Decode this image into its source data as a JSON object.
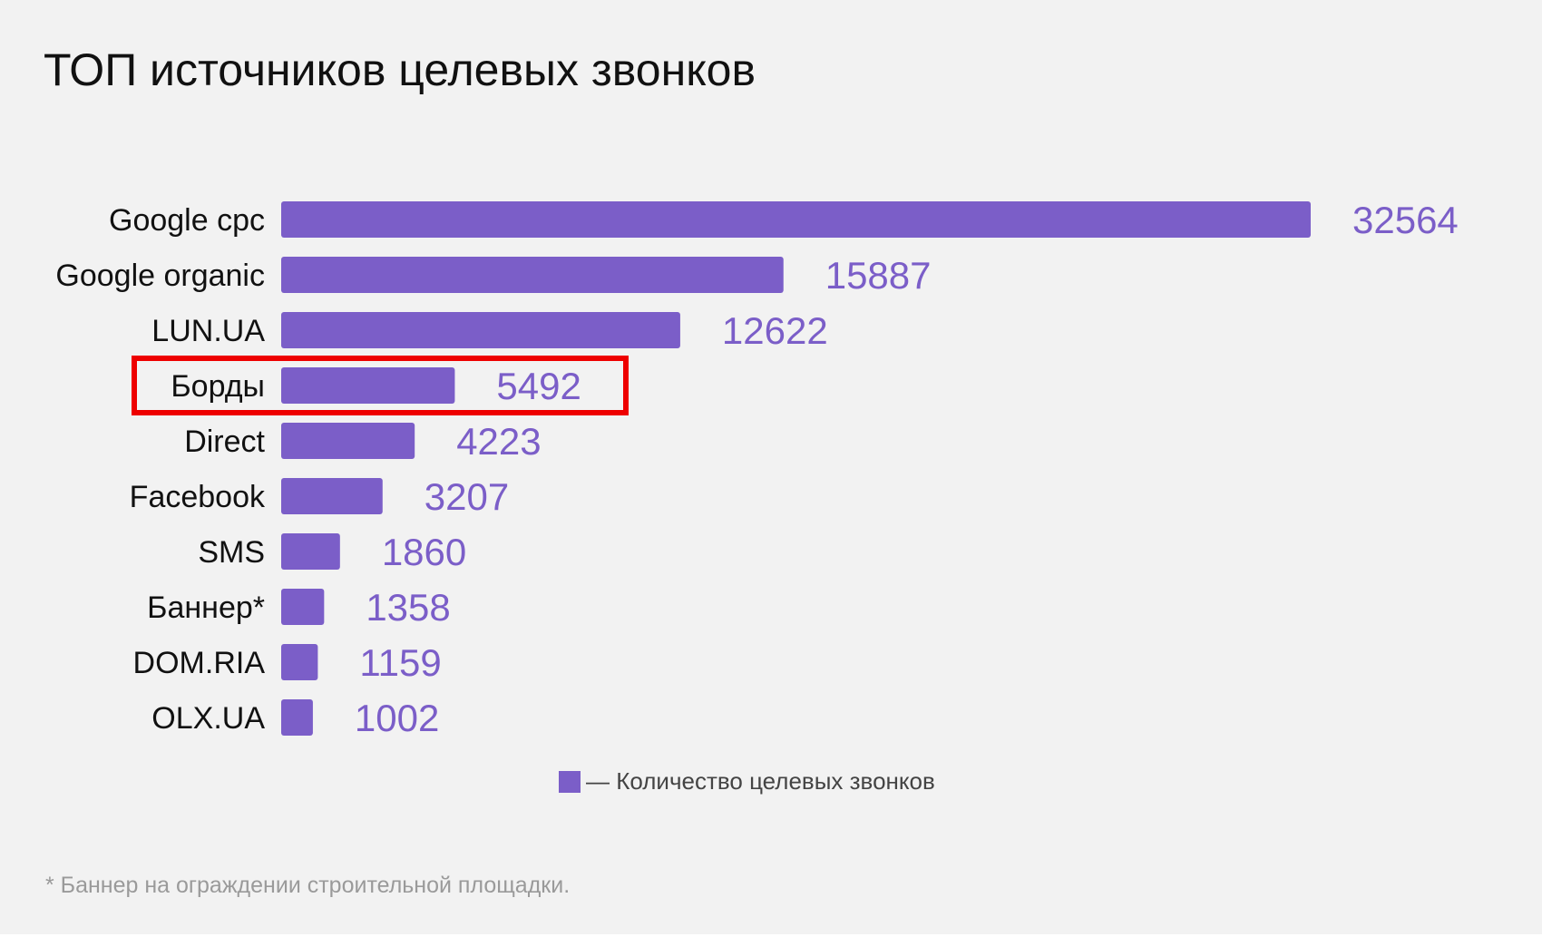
{
  "chart_data": {
    "type": "bar",
    "orientation": "horizontal",
    "title": "ТОП источников целевых звонков",
    "categories": [
      "Google cpc",
      "Google organic",
      "LUN.UA",
      "Борды",
      "Direct",
      "Facebook",
      "SMS",
      "Баннер*",
      "DOM.RIA",
      "OLX.UA"
    ],
    "series": [
      {
        "name": "— Количество целевых звонков",
        "values": [
          32564,
          15887,
          12622,
          5492,
          4223,
          3207,
          1860,
          1358,
          1159,
          1002
        ]
      }
    ],
    "highlighted_category": "Борды",
    "xlim": [
      0,
      32564
    ],
    "grid": false,
    "legend": "bottom-center",
    "bar_color": "#7b5ec8",
    "value_color": "#7b5ec8",
    "highlight_color": "#ee0000",
    "footnote": "* Баннер на ограждении строительной площадки."
  }
}
